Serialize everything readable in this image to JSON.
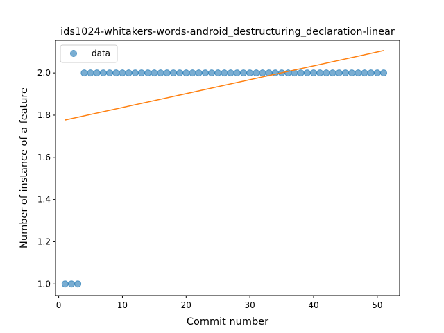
{
  "chart_data": {
    "type": "scatter",
    "title": "ids1024-whitakers-words-android_destructuring_declaration-linear",
    "xlabel": "Commit number",
    "ylabel": "Number of instance of a feature",
    "xlim": [
      -0.5,
      53.5
    ],
    "ylim": [
      0.945,
      2.155
    ],
    "xticks": [
      0,
      10,
      20,
      30,
      40,
      50
    ],
    "yticks": [
      1.0,
      1.2,
      1.4,
      1.6,
      1.8,
      2.0
    ],
    "xtick_labels": [
      "0",
      "10",
      "20",
      "30",
      "40",
      "50"
    ],
    "ytick_labels": [
      "1.0",
      "1.2",
      "1.4",
      "1.6",
      "1.8",
      "2.0"
    ],
    "grid": false,
    "legend": {
      "position": "top-left",
      "entries": [
        "data"
      ]
    },
    "series": [
      {
        "name": "data",
        "kind": "scatter",
        "color": "#1f77b4",
        "x": [
          1,
          2,
          3,
          4,
          5,
          6,
          7,
          8,
          9,
          10,
          11,
          12,
          13,
          14,
          15,
          16,
          17,
          18,
          19,
          20,
          21,
          22,
          23,
          24,
          25,
          26,
          27,
          28,
          29,
          30,
          31,
          32,
          33,
          34,
          35,
          36,
          37,
          38,
          39,
          40,
          41,
          42,
          43,
          44,
          45,
          46,
          47,
          48,
          49,
          50,
          51
        ],
        "y": [
          1,
          1,
          1,
          2,
          2,
          2,
          2,
          2,
          2,
          2,
          2,
          2,
          2,
          2,
          2,
          2,
          2,
          2,
          2,
          2,
          2,
          2,
          2,
          2,
          2,
          2,
          2,
          2,
          2,
          2,
          2,
          2,
          2,
          2,
          2,
          2,
          2,
          2,
          2,
          2,
          2,
          2,
          2,
          2,
          2,
          2,
          2,
          2,
          2,
          2,
          2
        ]
      },
      {
        "kind": "line",
        "color": "#ff7f0e",
        "x": [
          1,
          51
        ],
        "y": [
          1.777,
          2.106
        ]
      }
    ]
  }
}
